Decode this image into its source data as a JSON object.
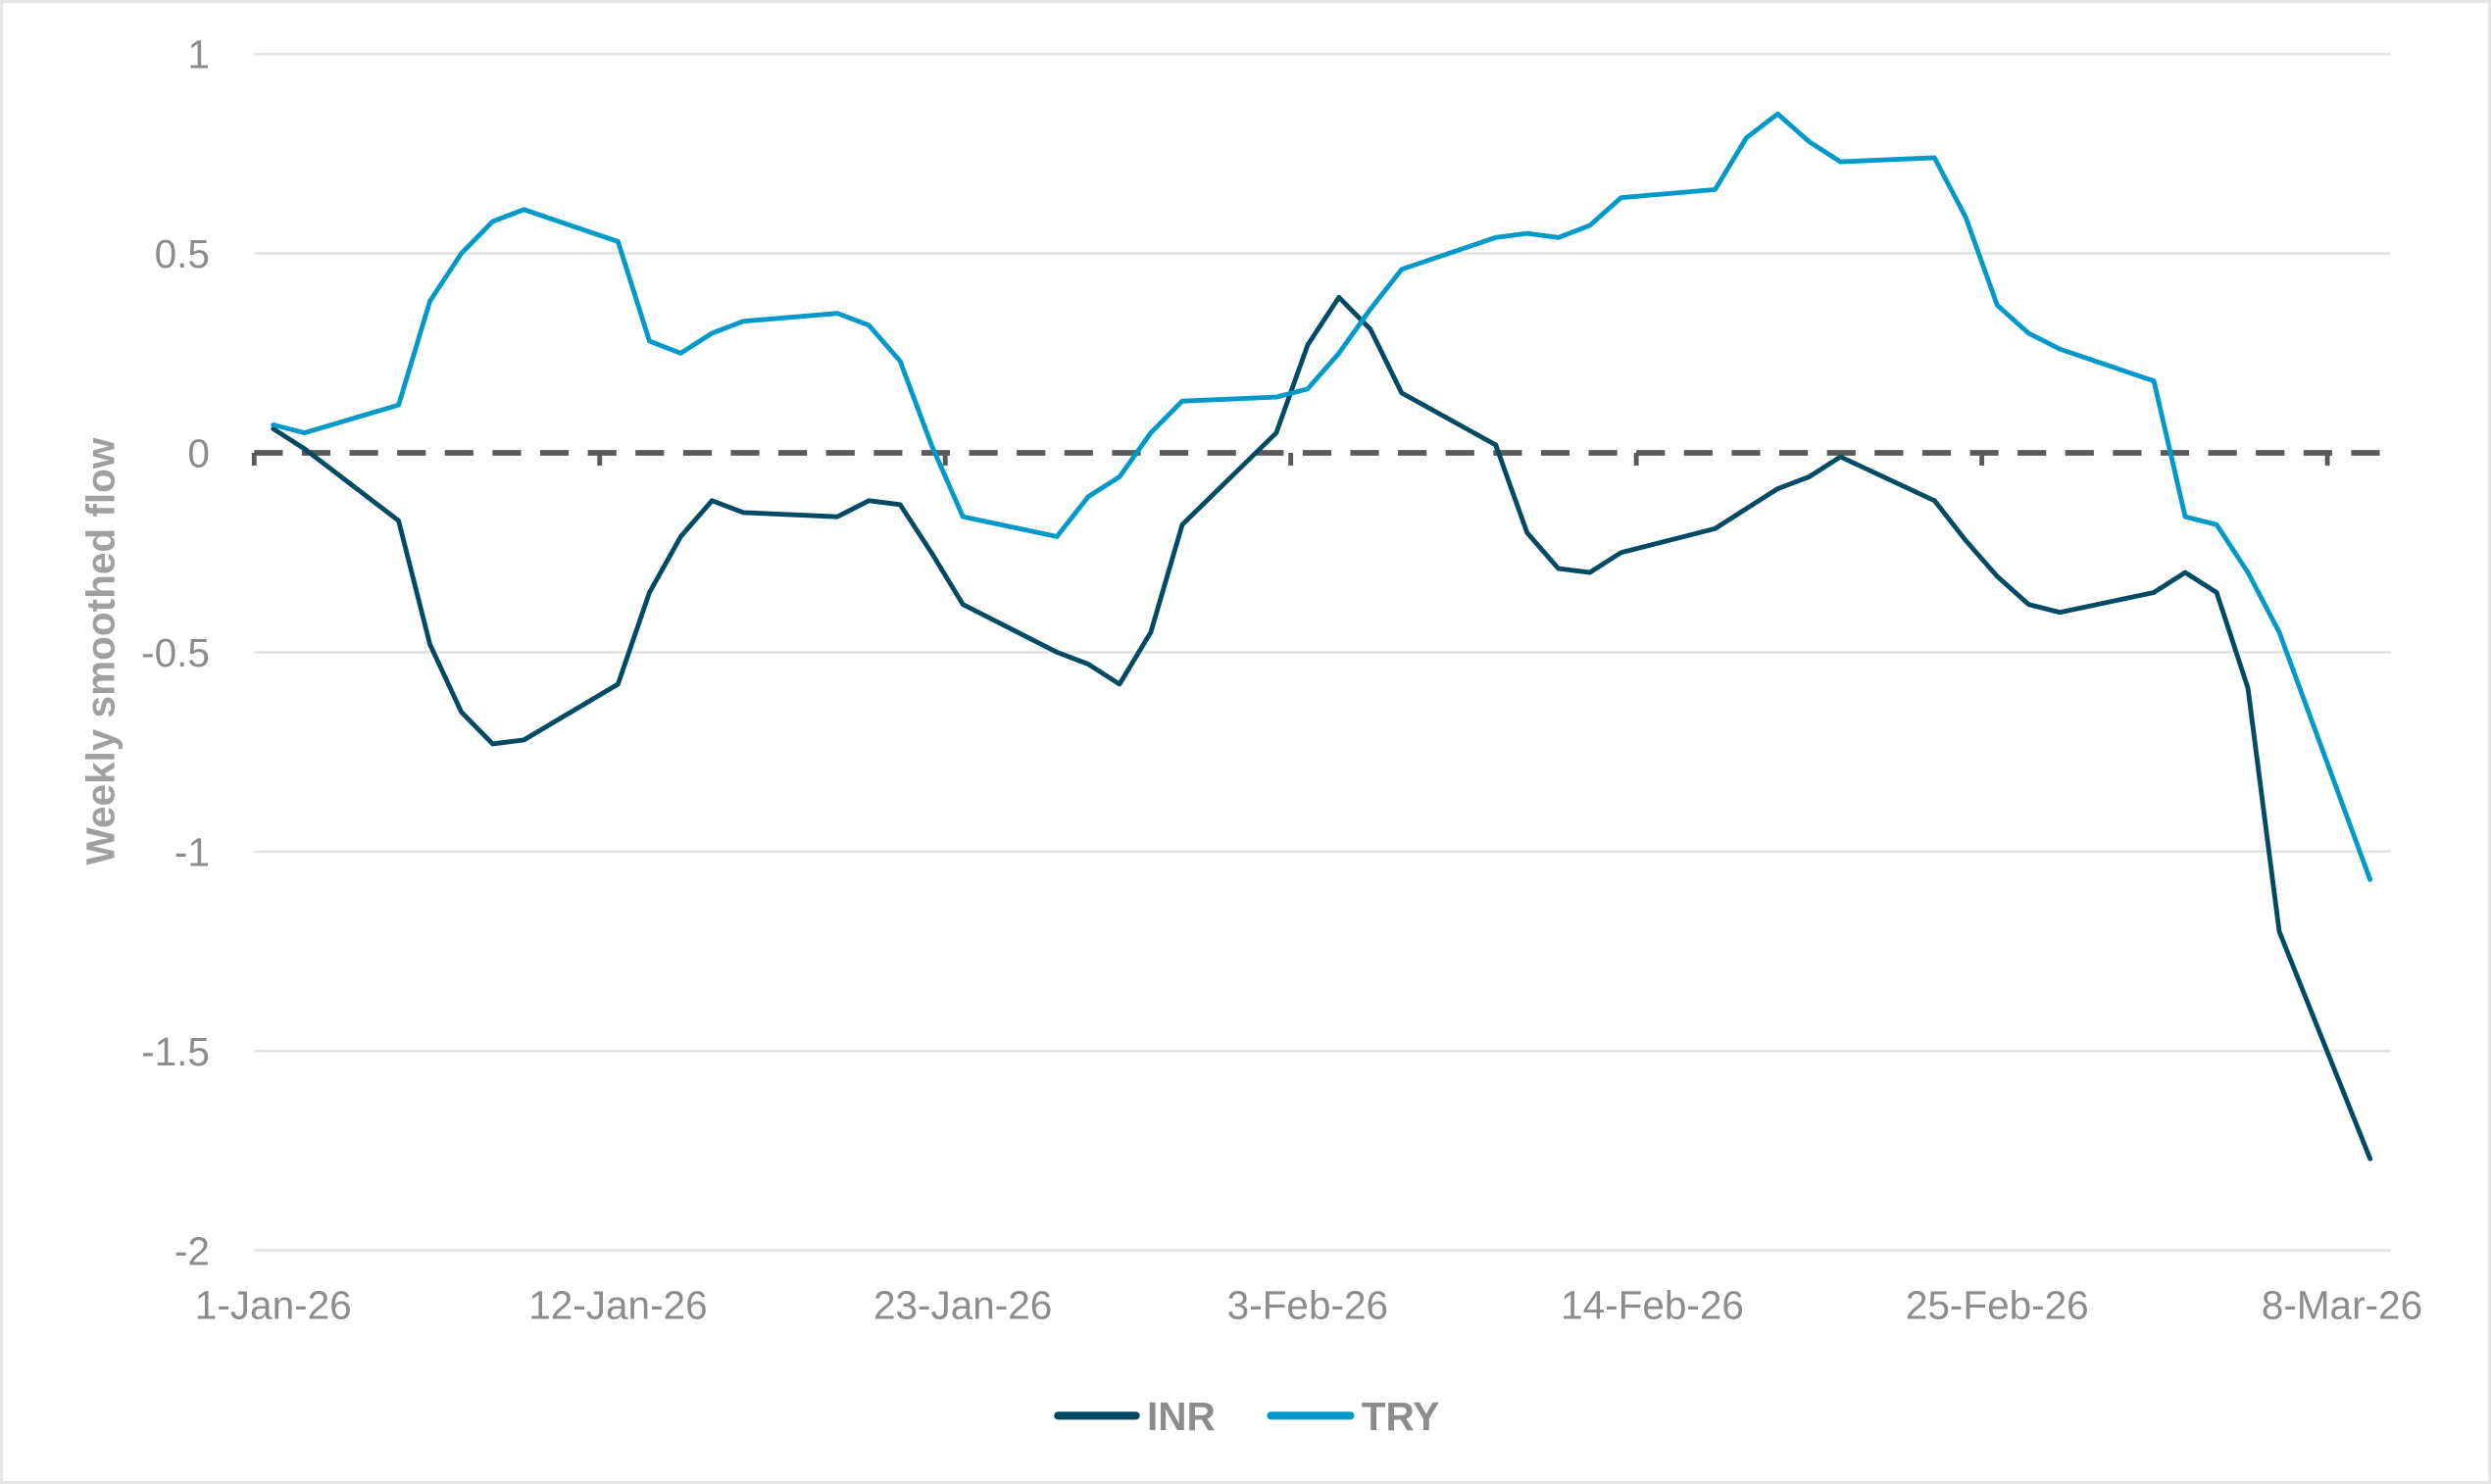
{
  "chart": {
    "ylabel": "Weekly smoothed flow",
    "y_ticks": [
      "1",
      "0.5",
      "0",
      "-0.5",
      "-1",
      "-1.5",
      "-2"
    ],
    "x_ticks": [
      "1-Jan-26",
      "12-Jan-26",
      "23-Jan-26",
      "3-Feb-26",
      "14-Feb-26",
      "25-Feb-26",
      "8-Mar-26"
    ],
    "legend": [
      {
        "label": "INR",
        "color": "#004b63"
      },
      {
        "label": "TRY",
        "color": "#0099c8"
      }
    ],
    "zero_line_color": "#595959"
  },
  "chart_data": {
    "type": "line",
    "title": "",
    "xlabel": "",
    "ylabel": "Weekly smoothed flow",
    "ylim": [
      -2,
      1
    ],
    "xlim": [
      "1-Jan-26",
      "8-Mar-26"
    ],
    "grid": true,
    "legend_position": "bottom",
    "x_tick_labels": [
      "1-Jan-26",
      "12-Jan-26",
      "23-Jan-26",
      "3-Feb-26",
      "14-Feb-26",
      "25-Feb-26",
      "8-Mar-26"
    ],
    "annotations": [
      "dashed horizontal line at y=0"
    ],
    "series": [
      {
        "name": "INR",
        "color": "#004b63",
        "x_day_offset": [
          0,
          1,
          4,
          5,
          6,
          7,
          8,
          11,
          12,
          13,
          14,
          15,
          18,
          19,
          20,
          21,
          22,
          25,
          26,
          27,
          28,
          29,
          32,
          33,
          34,
          35,
          36,
          39,
          40,
          41,
          42,
          43,
          46,
          47,
          48,
          49,
          50,
          53,
          54,
          55,
          56,
          57,
          60,
          61,
          62,
          63,
          64,
          67
        ],
        "values": [
          0.06,
          0.01,
          -0.17,
          -0.48,
          -0.65,
          -0.73,
          -0.72,
          -0.58,
          -0.35,
          -0.21,
          -0.12,
          -0.15,
          -0.16,
          -0.12,
          -0.13,
          -0.25,
          -0.38,
          -0.5,
          -0.53,
          -0.58,
          -0.45,
          -0.18,
          0.05,
          0.27,
          0.39,
          0.31,
          0.15,
          0.02,
          -0.2,
          -0.29,
          -0.3,
          -0.25,
          -0.19,
          -0.14,
          -0.09,
          -0.06,
          -0.01,
          -0.12,
          -0.22,
          -0.31,
          -0.38,
          -0.4,
          -0.35,
          -0.3,
          -0.35,
          -0.59,
          -1.2,
          -1.77
        ]
      },
      {
        "name": "TRY",
        "color": "#0099c8",
        "x_day_offset": [
          0,
          1,
          4,
          5,
          6,
          7,
          8,
          11,
          12,
          13,
          14,
          15,
          18,
          19,
          20,
          21,
          22,
          25,
          26,
          27,
          28,
          29,
          32,
          33,
          34,
          35,
          36,
          39,
          40,
          41,
          42,
          43,
          46,
          47,
          48,
          49,
          50,
          53,
          54,
          55,
          56,
          57,
          60,
          61,
          62,
          63,
          64,
          67
        ],
        "values": [
          0.07,
          0.05,
          0.12,
          0.38,
          0.5,
          0.58,
          0.61,
          0.53,
          0.28,
          0.25,
          0.3,
          0.33,
          0.35,
          0.32,
          0.23,
          0.02,
          -0.16,
          -0.21,
          -0.11,
          -0.06,
          0.05,
          0.13,
          0.14,
          0.16,
          0.25,
          0.36,
          0.46,
          0.54,
          0.55,
          0.54,
          0.57,
          0.64,
          0.66,
          0.79,
          0.85,
          0.78,
          0.73,
          0.74,
          0.59,
          0.37,
          0.3,
          0.26,
          0.18,
          -0.16,
          -0.18,
          -0.3,
          -0.45,
          -1.07
        ]
      }
    ]
  }
}
